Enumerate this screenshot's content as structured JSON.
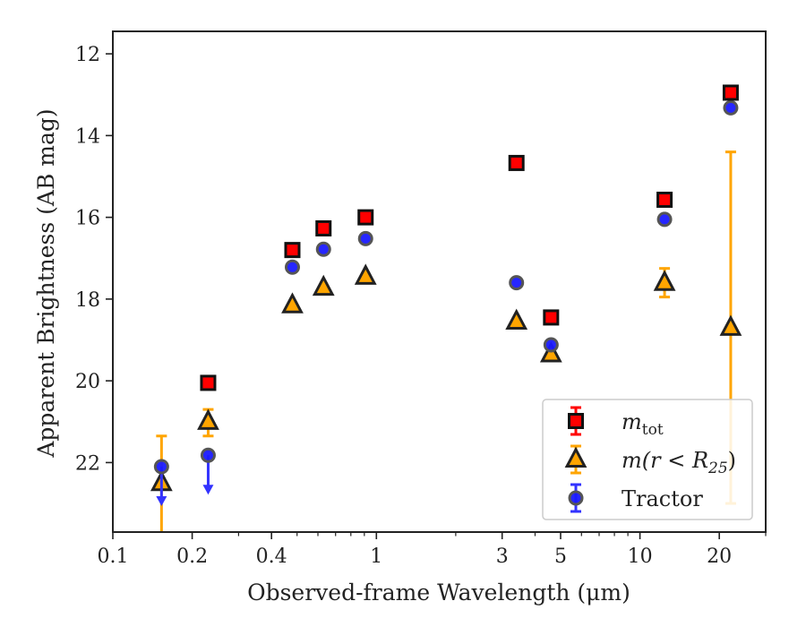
{
  "chart_data": {
    "type": "scatter",
    "title": "",
    "xlabel": "Observed-frame Wavelength (μm)",
    "ylabel": "Apparent Brightness (AB mag)",
    "xscale": "log",
    "yinverted": true,
    "xlim": [
      0.1,
      30
    ],
    "ylim": [
      23.7,
      11.45
    ],
    "x_ticks": [
      0.1,
      0.2,
      0.4,
      1,
      3,
      5,
      10,
      20
    ],
    "x_tick_labels": [
      "0.1",
      "0.2",
      "0.4",
      "1",
      "3",
      "5",
      "10",
      "20"
    ],
    "x_minor_ticks": [
      0.3,
      0.5,
      0.6,
      0.7,
      0.8,
      0.9,
      2,
      4,
      6,
      7,
      8,
      9,
      30
    ],
    "y_ticks": [
      12,
      14,
      16,
      18,
      20,
      22
    ],
    "y_tick_labels": [
      "12",
      "14",
      "16",
      "18",
      "20",
      "22"
    ],
    "grid": false,
    "legend_position": "lower-right",
    "series": [
      {
        "name": "m_tot",
        "marker": "square",
        "face_color": "#ff0000",
        "edge_color": "#111111",
        "error_color": "#ff0000",
        "points": [
          {
            "x": 0.23,
            "y": 20.05
          },
          {
            "x": 0.48,
            "y": 16.8
          },
          {
            "x": 0.63,
            "y": 16.27
          },
          {
            "x": 0.91,
            "y": 16.0
          },
          {
            "x": 3.4,
            "y": 14.67
          },
          {
            "x": 4.6,
            "y": 18.45
          },
          {
            "x": 12.4,
            "y": 15.57
          },
          {
            "x": 22.1,
            "y": 12.95
          }
        ]
      },
      {
        "name": "m(r<R25)",
        "marker": "triangle",
        "face_color": "#ffa500",
        "edge_color": "#222222",
        "error_color": "#ffa500",
        "points": [
          {
            "x": 0.153,
            "y": 22.5,
            "yerr": [
              null,
              1.15
            ],
            "open_down": true
          },
          {
            "x": 0.23,
            "y": 21.0,
            "yerr": [
              21.35,
              20.7
            ]
          },
          {
            "x": 0.48,
            "y": 18.15
          },
          {
            "x": 0.63,
            "y": 17.72
          },
          {
            "x": 0.91,
            "y": 17.45
          },
          {
            "x": 3.4,
            "y": 18.55
          },
          {
            "x": 4.6,
            "y": 19.35
          },
          {
            "x": 12.4,
            "y": 17.6,
            "yerr": [
              17.95,
              17.25
            ]
          },
          {
            "x": 22.1,
            "y": 18.7,
            "yerr": [
              23.0,
              14.4
            ]
          }
        ]
      },
      {
        "name": "Tractor",
        "marker": "circle",
        "face_color": "#1a1aff",
        "edge_color": "#555555",
        "error_color": "#3333ff",
        "points": [
          {
            "x": 0.153,
            "y": 22.1,
            "upper_limit": true
          },
          {
            "x": 0.23,
            "y": 21.82,
            "upper_limit": true
          },
          {
            "x": 0.48,
            "y": 17.22
          },
          {
            "x": 0.63,
            "y": 16.78
          },
          {
            "x": 0.91,
            "y": 16.52
          },
          {
            "x": 3.4,
            "y": 17.6
          },
          {
            "x": 4.6,
            "y": 19.12
          },
          {
            "x": 12.4,
            "y": 16.05
          },
          {
            "x": 22.1,
            "y": 13.32
          }
        ]
      }
    ]
  },
  "legend": {
    "items": [
      {
        "main": "m",
        "sub": "tot",
        "tail": ""
      },
      {
        "main": "m(r < R",
        "sub": "25",
        "tail": ")"
      },
      {
        "main": "Tractor",
        "sub": "",
        "tail": ""
      }
    ]
  }
}
